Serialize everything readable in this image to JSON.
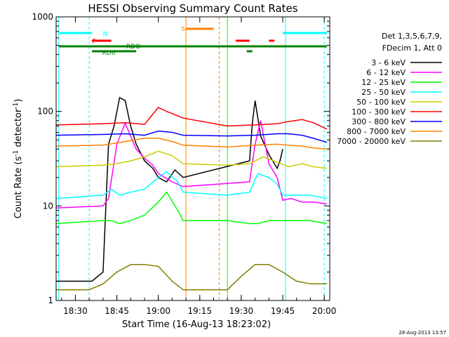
{
  "chart_data": {
    "type": "line",
    "title": "HESSI Observing Summary Count Rates",
    "xlabel": "Start Time (16-Aug-13 18:23:02)",
    "ylabel": "Count Rate (s",
    "ylabel_sup1": "-1",
    "ylabel_mid": " detector",
    "ylabel_sup2": "-1",
    "ylabel_end": ")",
    "yscale": "log",
    "ylim": [
      1,
      1000
    ],
    "xlim": [
      "18:23:02",
      "20:02:00"
    ],
    "x_ticks": [
      "18:30",
      "18:45",
      "19:00",
      "19:15",
      "19:30",
      "19:45",
      "20:00"
    ],
    "y_ticks": [
      "1",
      "10",
      "100",
      "1000"
    ],
    "date_stamp": "28-Aug-2013 13:57",
    "legend_header": [
      "Det 1,3,5,6,7,9,",
      "FDecim 1, Att 0"
    ],
    "series": [
      {
        "name": "3 - 6 keV",
        "color": "#000000",
        "x": [
          "18:23",
          "18:36",
          "18:40",
          "18:42",
          "18:44",
          "18:46",
          "18:48",
          "18:50",
          "18:52",
          "18:55",
          "18:58",
          "19:00",
          "19:03",
          "19:06",
          "19:09",
          "19:33",
          "19:34",
          "19:35",
          "19:37",
          "19:40",
          "19:43",
          "19:44",
          "19:45"
        ],
        "y": [
          1.6,
          1.6,
          2,
          45,
          70,
          140,
          130,
          70,
          45,
          30,
          25,
          20,
          18,
          24,
          20,
          30,
          75,
          130,
          55,
          35,
          25,
          30,
          40
        ]
      },
      {
        "name": "6 - 12 keV",
        "color": "#ff00ff",
        "x": [
          "18:23",
          "18:40",
          "18:42",
          "18:45",
          "18:48",
          "18:52",
          "18:55",
          "18:58",
          "19:00",
          "19:05",
          "19:09",
          "19:33",
          "19:35",
          "19:37",
          "19:40",
          "19:43",
          "19:45",
          "19:48",
          "19:52",
          "19:56",
          "20:01"
        ],
        "y": [
          9.5,
          10,
          12,
          45,
          75,
          40,
          32,
          27,
          22,
          18,
          16,
          18,
          45,
          80,
          28,
          20,
          11.5,
          12,
          11,
          11,
          10.5
        ]
      },
      {
        "name": "12 - 25 keV",
        "color": "#00ff00",
        "x": [
          "18:23",
          "18:40",
          "18:43",
          "18:46",
          "18:50",
          "18:55",
          "19:00",
          "19:03",
          "19:07",
          "19:09",
          "19:25",
          "19:33",
          "19:36",
          "19:40",
          "19:44",
          "19:46",
          "19:50",
          "19:55",
          "20:01"
        ],
        "y": [
          6.5,
          7,
          7,
          6.5,
          7,
          8,
          11,
          14,
          9,
          7,
          7,
          6.5,
          6.5,
          7,
          7,
          7,
          7,
          7,
          6.5
        ]
      },
      {
        "name": "25 - 50 keV",
        "color": "#00ffff",
        "x": [
          "18:23",
          "18:40",
          "18:43",
          "18:46",
          "18:50",
          "18:55",
          "19:00",
          "19:03",
          "19:07",
          "19:09",
          "19:25",
          "19:33",
          "19:36",
          "19:40",
          "19:43",
          "19:45",
          "19:50",
          "19:55",
          "20:01"
        ],
        "y": [
          12,
          13,
          15,
          13,
          14,
          15,
          20,
          23,
          18,
          14,
          13,
          14,
          22,
          20,
          17,
          13,
          13,
          13,
          12
        ]
      },
      {
        "name": "50 - 100 keV",
        "color": "#cccc00",
        "x": [
          "18:23",
          "18:40",
          "18:45",
          "18:50",
          "18:55",
          "19:00",
          "19:05",
          "19:09",
          "19:25",
          "19:33",
          "19:38",
          "19:43",
          "19:47",
          "19:52",
          "19:56",
          "20:01"
        ],
        "y": [
          26,
          27,
          28,
          30,
          33,
          38,
          34,
          28,
          27,
          28,
          33,
          29,
          26,
          28,
          26,
          25
        ]
      },
      {
        "name": "100 - 300 keV",
        "color": "#ff0000",
        "x": [
          "18:23",
          "18:40",
          "18:48",
          "18:55",
          "19:00",
          "19:03",
          "19:09",
          "19:25",
          "19:35",
          "19:43",
          "19:47",
          "19:52",
          "19:56",
          "20:01"
        ],
        "y": [
          72,
          74,
          76,
          73,
          110,
          100,
          85,
          70,
          72,
          74,
          78,
          82,
          76,
          65
        ]
      },
      {
        "name": "300 - 800 keV",
        "color": "#0000ff",
        "x": [
          "18:23",
          "18:40",
          "18:48",
          "18:55",
          "19:00",
          "19:05",
          "19:09",
          "19:25",
          "19:35",
          "19:43",
          "19:47",
          "19:52",
          "19:56",
          "20:01"
        ],
        "y": [
          56,
          57,
          58,
          56,
          62,
          60,
          56,
          55,
          56,
          58,
          58,
          56,
          52,
          47
        ]
      },
      {
        "name": "800 - 7000 keV",
        "color": "#ff8000",
        "x": [
          "18:23",
          "18:40",
          "18:48",
          "18:55",
          "19:00",
          "19:05",
          "19:09",
          "19:25",
          "19:35",
          "19:43",
          "19:47",
          "19:52",
          "19:56",
          "20:01"
        ],
        "y": [
          43,
          44,
          48,
          52,
          52,
          48,
          44,
          42,
          44,
          45,
          44,
          43,
          41,
          40
        ]
      },
      {
        "name": "7000 - 20000 keV",
        "color": "#808000",
        "x": [
          "18:23",
          "18:35",
          "18:40",
          "18:45",
          "18:50",
          "18:55",
          "19:00",
          "19:05",
          "19:09",
          "19:25",
          "19:30",
          "19:35",
          "19:40",
          "19:45",
          "19:50",
          "19:55",
          "20:01"
        ],
        "y": [
          1.3,
          1.3,
          1.5,
          2,
          2.4,
          2.4,
          2.3,
          1.6,
          1.3,
          1.3,
          1.8,
          2.4,
          2.4,
          2,
          1.6,
          1.5,
          1.5
        ]
      }
    ],
    "flag_labels": [
      "N",
      "F",
      "RDO",
      "RD6",
      "S"
    ]
  }
}
